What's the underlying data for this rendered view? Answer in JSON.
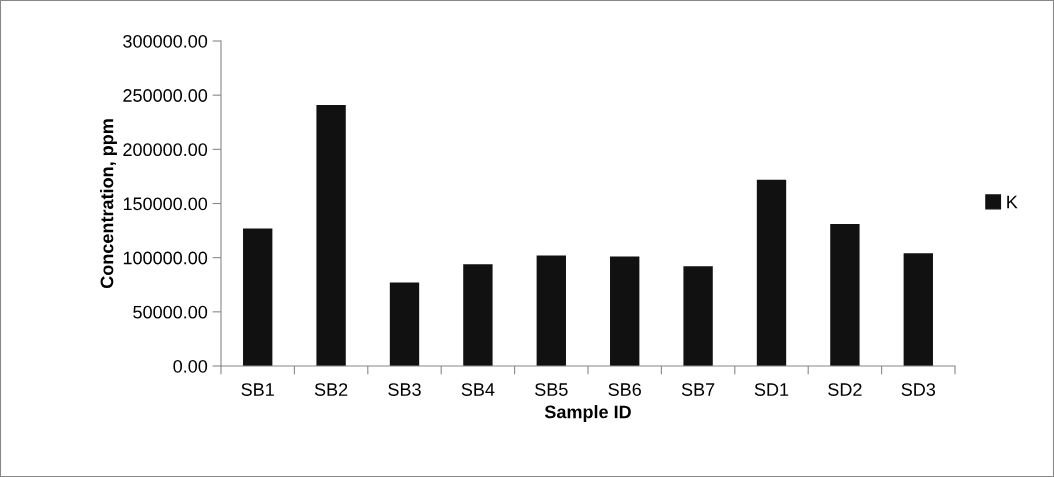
{
  "chart_data": {
    "type": "bar",
    "xlabel": "Sample ID",
    "ylabel": "Concentration, ppm",
    "categories": [
      "SB1",
      "SB2",
      "SB3",
      "SB4",
      "SB5",
      "SB6",
      "SB7",
      "SD1",
      "SD2",
      "SD3"
    ],
    "series": [
      {
        "name": "K",
        "color": "#111111",
        "values": [
          127000,
          241000,
          77000,
          94000,
          102000,
          101000,
          92000,
          172000,
          131000,
          104000
        ]
      }
    ],
    "ylim": [
      0,
      300000
    ],
    "yticks": [
      {
        "value": 0,
        "label": "0.00"
      },
      {
        "value": 50000,
        "label": "50000.00"
      },
      {
        "value": 100000,
        "label": "100000.00"
      },
      {
        "value": 150000,
        "label": "150000.00"
      },
      {
        "value": 200000,
        "label": "200000.00"
      },
      {
        "value": 250000,
        "label": "250000.00"
      },
      {
        "value": 300000,
        "label": "300000.00"
      }
    ],
    "grid": false,
    "legend": "right"
  }
}
